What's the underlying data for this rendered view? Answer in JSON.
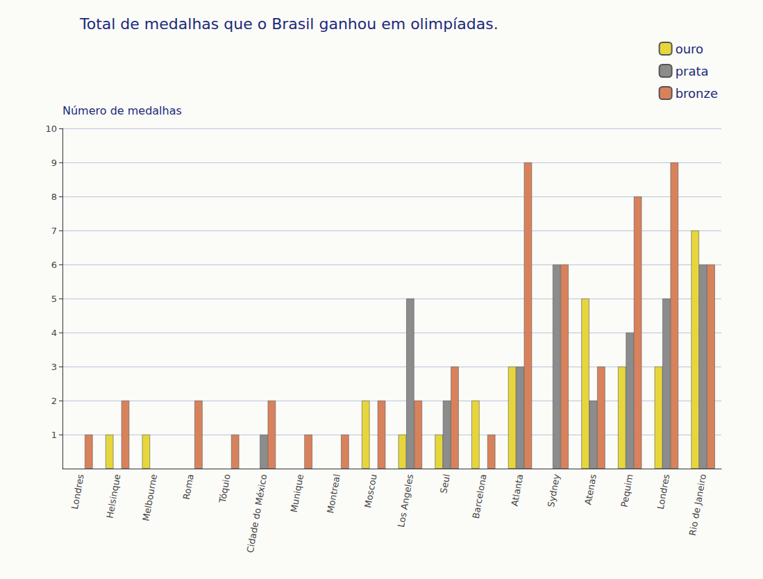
{
  "chart_data": {
    "type": "bar",
    "title": "Total de medalhas que o Brasil ganhou em olimpíadas.",
    "y_label": "Número de medalhas",
    "categories": [
      "Londres",
      "Helsinque",
      "Melbourne",
      "Roma",
      "Tóquio",
      "Cidade do México",
      "Munique",
      "Montreal",
      "Moscou",
      "Los Angeles",
      "Seul",
      "Barcelona",
      "Atlanta",
      "Sydney",
      "Atenas",
      "Pequim",
      "Londres",
      "Rio de Janeiro"
    ],
    "series": [
      {
        "name": "ouro",
        "color": "#e6d63c",
        "values": [
          null,
          1,
          1,
          null,
          null,
          null,
          null,
          null,
          2,
          1,
          1,
          2,
          3,
          null,
          5,
          3,
          3,
          7
        ]
      },
      {
        "name": "prata",
        "color": "#8c8c8c",
        "values": [
          null,
          null,
          null,
          null,
          null,
          1,
          null,
          null,
          null,
          5,
          2,
          null,
          3,
          6,
          2,
          4,
          5,
          6
        ]
      },
      {
        "name": "bronze",
        "color": "#d8825c",
        "values": [
          1,
          2,
          null,
          2,
          1,
          2,
          1,
          1,
          2,
          2,
          3,
          1,
          9,
          6,
          3,
          8,
          9,
          6
        ]
      }
    ],
    "ylim": [
      0,
      10
    ],
    "yticks": [
      1,
      2,
      3,
      4,
      5,
      6,
      7,
      8,
      9,
      10
    ],
    "grid": true,
    "legend": "top-right"
  }
}
